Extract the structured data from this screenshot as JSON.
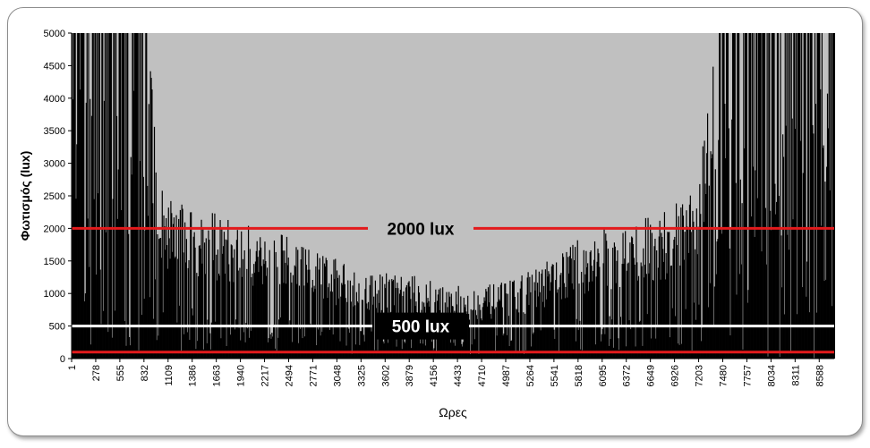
{
  "chart_data": {
    "type": "bar",
    "xlabel": "Ωρες",
    "ylabel": "Φωτισμός (lux)",
    "ylim": [
      0,
      5000
    ],
    "xlim": [
      1,
      8760
    ],
    "yticks": [
      0,
      500,
      1000,
      1500,
      2000,
      2500,
      3000,
      3500,
      4000,
      4500,
      5000
    ],
    "xticks": [
      1,
      278,
      555,
      832,
      1109,
      1386,
      1663,
      1940,
      2217,
      2494,
      2771,
      3048,
      3325,
      3602,
      3879,
      4156,
      4433,
      4710,
      4987,
      5264,
      5541,
      5818,
      6095,
      6372,
      6649,
      6926,
      7203,
      7480,
      7757,
      8034,
      8311,
      8588
    ],
    "grid": false,
    "plot_background": "#c0c0c0",
    "bar_color": "#000000",
    "reference_lines": [
      {
        "value": 2000,
        "label": "2000 lux",
        "color": "#e31a1c"
      },
      {
        "value": 500,
        "label": "500 lux",
        "color": "#ffffff"
      },
      {
        "value": 100,
        "label": "",
        "color": "#e31a1c"
      }
    ],
    "envelope": {
      "x": [
        1,
        300,
        600,
        900,
        1000,
        1100,
        1300,
        1600,
        1900,
        2200,
        2500,
        2800,
        3100,
        3400,
        3700,
        4000,
        4300,
        4600,
        4900,
        5200,
        5500,
        5800,
        6100,
        6400,
        6700,
        7000,
        7200,
        7400,
        7600,
        7800,
        8100,
        8400,
        8760
      ],
      "y": [
        5000,
        5000,
        5000,
        5000,
        2600,
        2450,
        2350,
        2150,
        2000,
        1950,
        1800,
        1600,
        1450,
        1350,
        1250,
        1200,
        1100,
        1050,
        1100,
        1250,
        1450,
        1750,
        1900,
        2000,
        2150,
        2300,
        2600,
        5000,
        5000,
        5000,
        5000,
        5000,
        5000
      ]
    }
  }
}
